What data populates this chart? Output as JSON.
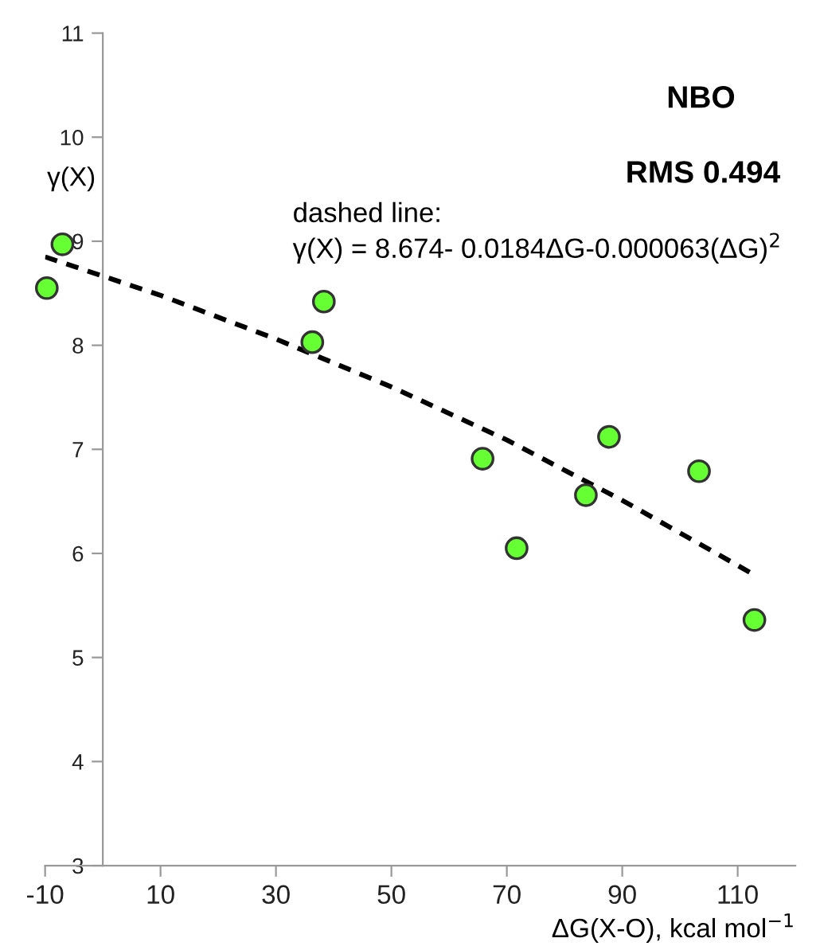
{
  "chart_data": {
    "type": "scatter",
    "xlabel": "ΔG(X-O), kcal mol$^{−1}$",
    "ylabel": "γ(X)",
    "xlim": [
      -10,
      120
    ],
    "xticks": [
      -10,
      10,
      30,
      50,
      70,
      90,
      110
    ],
    "ylim": [
      3,
      11
    ],
    "yticks": [
      3,
      4,
      5,
      6,
      7,
      8,
      9,
      10,
      11
    ],
    "grid": false,
    "legend": false,
    "annotations": [
      "NBO",
      "RMS 0.494",
      "dashed line:\nγ(X) = 8.674- 0.0184ΔG-0.000063(ΔG)$^{2}$"
    ],
    "series": [
      {
        "color": "#66ff33",
        "marker": "circle",
        "x": [
          -9.7,
          -7.0,
          36.3,
          38.3,
          65.8,
          71.7,
          87.7,
          83.7,
          103.3,
          112.9
        ],
        "values": [
          8.55,
          8.97,
          8.03,
          8.42,
          6.91,
          6.05,
          7.12,
          6.56,
          6.79,
          5.36
        ]
      },
      {
        "type": "line",
        "color": "#000000",
        "line_style": "dashed",
        "marker": "none",
        "x": [
          -10,
          10,
          30,
          50,
          70,
          90,
          113
        ],
        "values": [
          8.85,
          8.48,
          8.06,
          7.6,
          7.09,
          6.51,
          5.79
        ]
      }
    ]
  }
}
